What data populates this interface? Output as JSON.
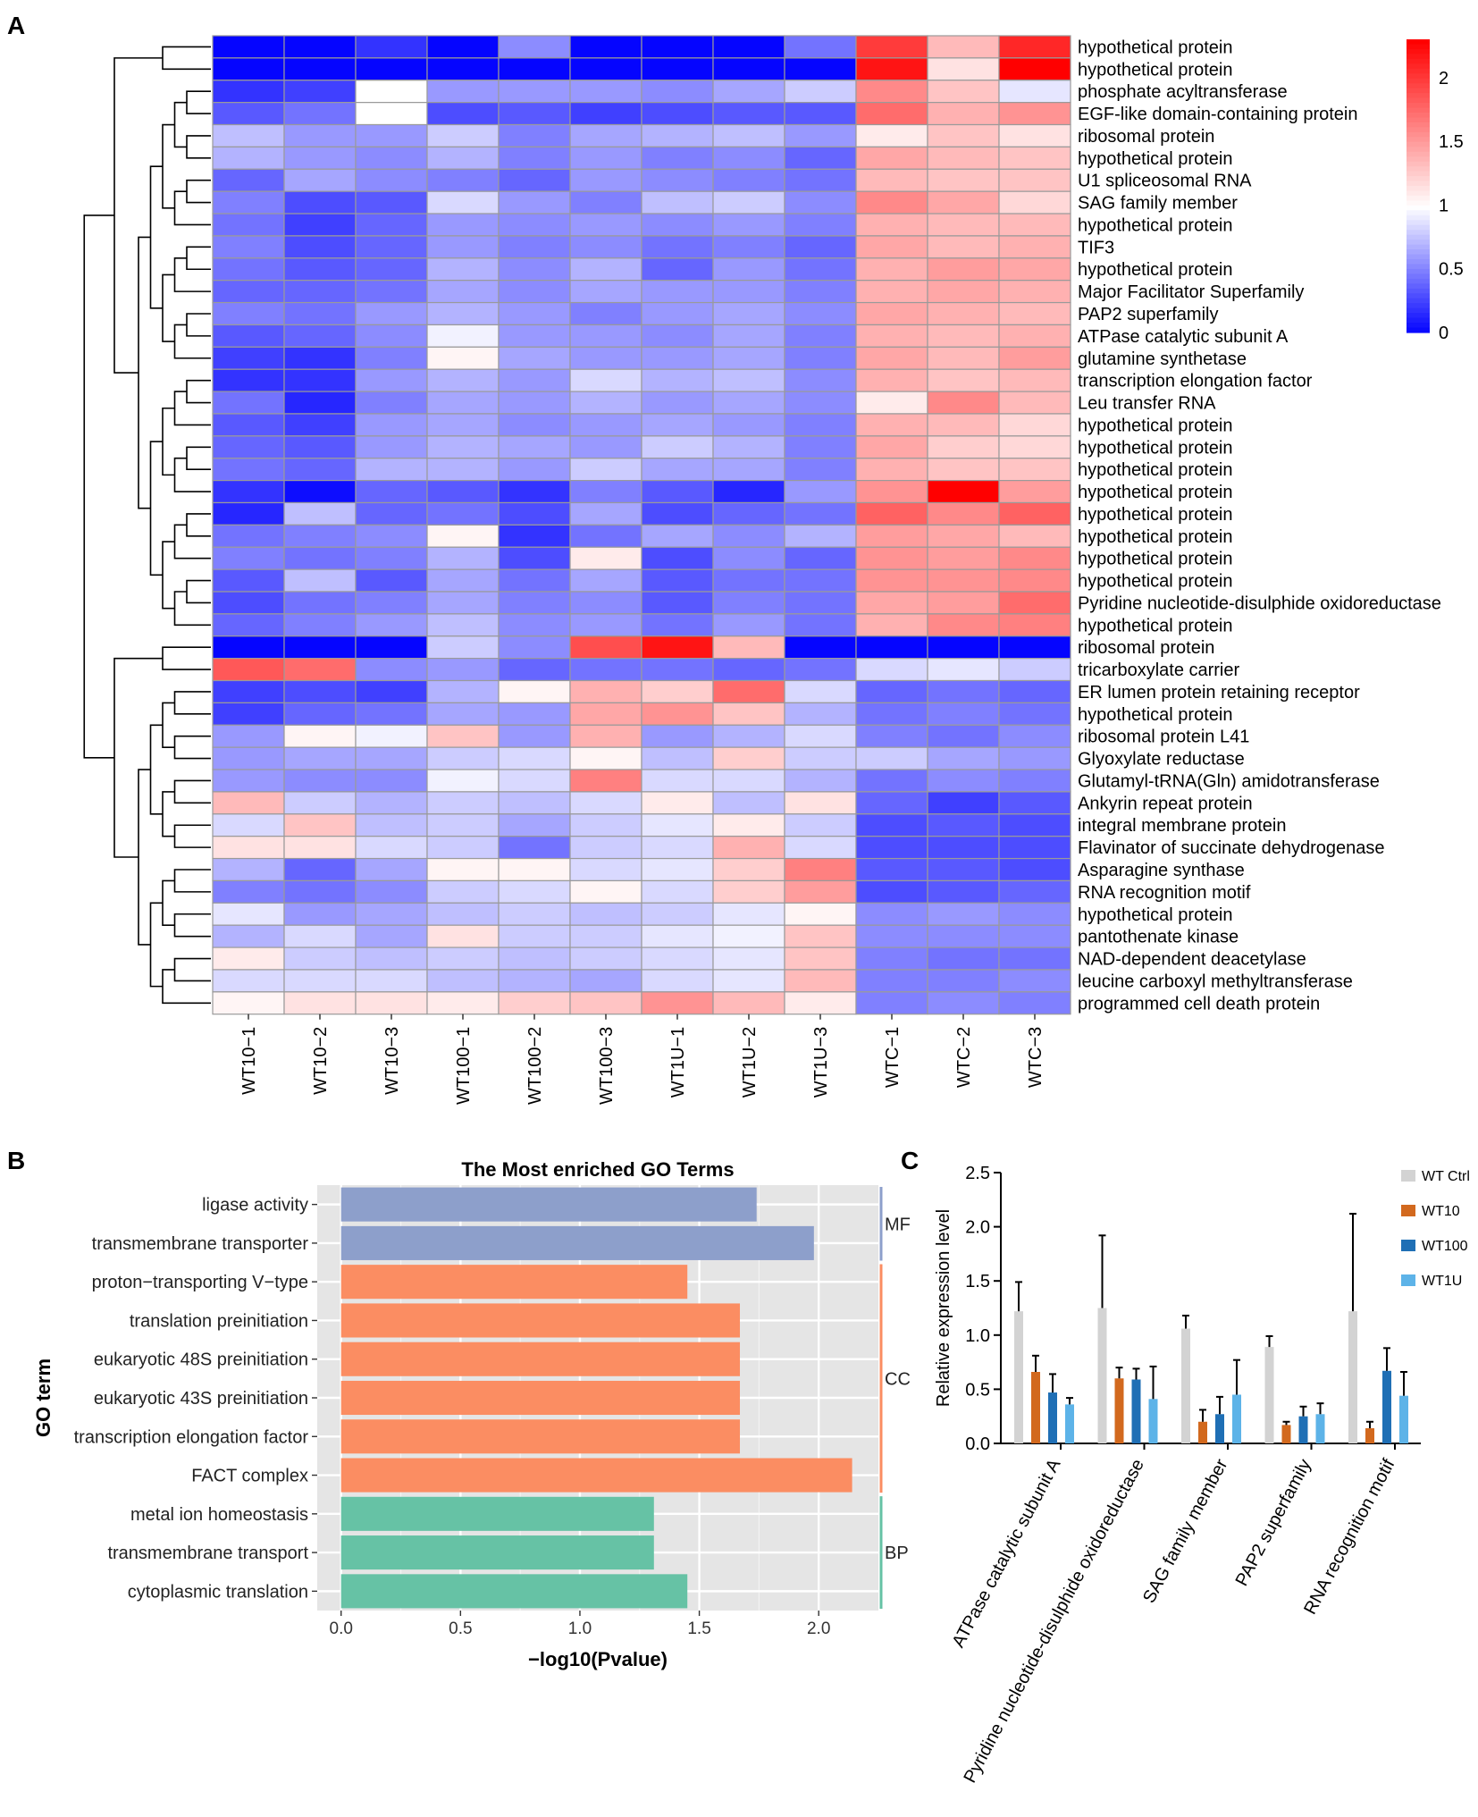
{
  "panels": {
    "a": "A",
    "b": "B",
    "c": "C"
  },
  "colors": {
    "heat_low": "#0000ff",
    "heat_mid": "#ffffff",
    "heat_high": "#ff0000",
    "heat_grid": "#9a9a9a",
    "mf": "#8d9fcb",
    "cc": "#fb8d62",
    "bp": "#66c2a5",
    "panel_bg": "#e5e5e5",
    "wt_ctrl": "#d3d3d3",
    "wt10": "#d2691e",
    "wt100": "#1f6fb5",
    "wt1u": "#5db3e8"
  },
  "chart_data": [
    {
      "type": "heatmap",
      "columns": [
        "WT10−1",
        "WT10−2",
        "WT10−3",
        "WT100−1",
        "WT100−2",
        "WT100−3",
        "WT1U−1",
        "WT1U−2",
        "WT1U−3",
        "WTC−1",
        "WTC−2",
        "WTC−3"
      ],
      "rows": [
        "hypothetical protein",
        "hypothetical protein",
        "phosphate acyltransferase",
        "EGF-like domain-containing protein",
        "ribosomal protein",
        "hypothetical protein",
        "U1 spliceosomal RNA",
        "SAG family member",
        "hypothetical protein",
        "TIF3",
        "hypothetical protein",
        "Major Facilitator Superfamily",
        "PAP2 superfamily",
        "ATPase catalytic subunit A",
        "glutamine synthetase",
        "transcription elongation factor",
        "Leu transfer RNA",
        "hypothetical protein",
        "hypothetical protein",
        "hypothetical protein",
        "hypothetical protein",
        "hypothetical protein",
        "hypothetical protein",
        "hypothetical protein",
        "hypothetical protein",
        "Pyridine nucleotide-disulphide oxidoreductase",
        "hypothetical protein",
        "ribosomal protein",
        "tricarboxylate carrier",
        "ER lumen protein retaining receptor",
        "hypothetical protein",
        "ribosomal protein L41",
        "Glyoxylate reductase",
        "Glutamyl-tRNA(Gln) amidotransferase",
        "Ankyrin repeat protein",
        "integral membrane protein",
        "Flavinator of succinate dehydrogenase",
        "Asparagine synthase",
        "RNA recognition motif",
        "hypothetical protein",
        "pantothenate kinase",
        "NAD-dependent deacetylase",
        "leucine carboxyl methyltransferase",
        "programmed cell death protein"
      ],
      "values": [
        [
          0.02,
          0.02,
          0.2,
          0.02,
          0.55,
          0.02,
          0.02,
          0.02,
          0.45,
          2.0,
          1.35,
          2.1
        ],
        [
          0.02,
          0.02,
          0.02,
          0.02,
          0.02,
          0.02,
          0.02,
          0.02,
          0.02,
          2.2,
          1.15,
          2.3
        ],
        [
          0.2,
          0.25,
          1.0,
          0.6,
          0.6,
          0.6,
          0.55,
          0.65,
          0.8,
          1.6,
          1.3,
          0.9
        ],
        [
          0.35,
          0.45,
          1.0,
          0.3,
          0.35,
          0.25,
          0.3,
          0.35,
          0.35,
          1.75,
          1.4,
          1.55
        ],
        [
          0.75,
          0.6,
          0.6,
          0.8,
          0.5,
          0.65,
          0.7,
          0.75,
          0.6,
          1.1,
          1.3,
          1.15
        ],
        [
          0.7,
          0.6,
          0.55,
          0.7,
          0.5,
          0.6,
          0.5,
          0.55,
          0.4,
          1.45,
          1.35,
          1.3
        ],
        [
          0.4,
          0.65,
          0.55,
          0.5,
          0.4,
          0.6,
          0.55,
          0.5,
          0.45,
          1.35,
          1.3,
          1.3
        ],
        [
          0.5,
          0.3,
          0.35,
          0.85,
          0.6,
          0.5,
          0.75,
          0.8,
          0.55,
          1.6,
          1.45,
          1.2
        ],
        [
          0.45,
          0.25,
          0.4,
          0.6,
          0.55,
          0.6,
          0.55,
          0.6,
          0.5,
          1.4,
          1.35,
          1.35
        ],
        [
          0.5,
          0.3,
          0.4,
          0.6,
          0.5,
          0.55,
          0.45,
          0.5,
          0.4,
          1.45,
          1.35,
          1.4
        ],
        [
          0.45,
          0.35,
          0.4,
          0.7,
          0.55,
          0.7,
          0.4,
          0.6,
          0.45,
          1.4,
          1.5,
          1.45
        ],
        [
          0.4,
          0.4,
          0.45,
          0.65,
          0.55,
          0.65,
          0.6,
          0.6,
          0.5,
          1.4,
          1.45,
          1.4
        ],
        [
          0.5,
          0.45,
          0.6,
          0.7,
          0.6,
          0.5,
          0.6,
          0.65,
          0.55,
          1.45,
          1.4,
          1.35
        ],
        [
          0.35,
          0.4,
          0.55,
          0.95,
          0.6,
          0.6,
          0.55,
          0.65,
          0.5,
          1.4,
          1.35,
          1.4
        ],
        [
          0.25,
          0.2,
          0.5,
          1.05,
          0.65,
          0.6,
          0.6,
          0.65,
          0.5,
          1.45,
          1.35,
          1.5
        ],
        [
          0.2,
          0.2,
          0.6,
          0.7,
          0.6,
          0.85,
          0.7,
          0.75,
          0.55,
          1.4,
          1.3,
          1.35
        ],
        [
          0.45,
          0.15,
          0.5,
          0.65,
          0.6,
          0.7,
          0.6,
          0.65,
          0.55,
          1.1,
          1.6,
          1.35
        ],
        [
          0.35,
          0.25,
          0.6,
          0.65,
          0.55,
          0.6,
          0.65,
          0.6,
          0.5,
          1.4,
          1.35,
          1.2
        ],
        [
          0.4,
          0.35,
          0.6,
          0.7,
          0.65,
          0.6,
          0.8,
          0.7,
          0.5,
          1.45,
          1.25,
          1.2
        ],
        [
          0.45,
          0.4,
          0.7,
          0.7,
          0.6,
          0.8,
          0.65,
          0.65,
          0.5,
          1.4,
          1.3,
          1.3
        ],
        [
          0.2,
          0.05,
          0.4,
          0.35,
          0.2,
          0.5,
          0.35,
          0.15,
          0.6,
          1.55,
          2.3,
          1.5
        ],
        [
          0.15,
          0.75,
          0.4,
          0.45,
          0.3,
          0.65,
          0.3,
          0.4,
          0.45,
          1.8,
          1.6,
          1.8
        ],
        [
          0.45,
          0.5,
          0.55,
          1.05,
          0.2,
          0.45,
          0.65,
          0.55,
          0.7,
          1.5,
          1.45,
          1.35
        ],
        [
          0.5,
          0.45,
          0.5,
          0.7,
          0.3,
          1.1,
          0.3,
          0.55,
          0.4,
          1.55,
          1.5,
          1.6
        ],
        [
          0.35,
          0.75,
          0.35,
          0.65,
          0.45,
          0.65,
          0.35,
          0.45,
          0.45,
          1.55,
          1.55,
          1.6
        ],
        [
          0.3,
          0.45,
          0.5,
          0.65,
          0.5,
          0.55,
          0.35,
          0.5,
          0.45,
          1.45,
          1.5,
          1.75
        ],
        [
          0.4,
          0.5,
          0.6,
          0.75,
          0.55,
          0.6,
          0.45,
          0.6,
          0.45,
          1.4,
          1.6,
          1.65
        ],
        [
          0.02,
          0.02,
          0.02,
          0.8,
          0.55,
          1.9,
          2.2,
          1.35,
          0.02,
          0.02,
          0.02,
          0.02
        ],
        [
          1.85,
          1.75,
          0.55,
          0.6,
          0.4,
          0.45,
          0.45,
          0.4,
          0.45,
          0.85,
          0.9,
          0.8
        ],
        [
          0.25,
          0.3,
          0.25,
          0.7,
          1.05,
          1.4,
          1.25,
          1.75,
          0.85,
          0.4,
          0.45,
          0.4
        ],
        [
          0.25,
          0.4,
          0.45,
          0.65,
          0.6,
          1.45,
          1.55,
          1.3,
          0.7,
          0.45,
          0.5,
          0.45
        ],
        [
          0.6,
          1.05,
          0.95,
          1.3,
          0.6,
          1.4,
          0.6,
          0.7,
          0.85,
          0.5,
          0.45,
          0.55
        ],
        [
          0.6,
          0.65,
          0.65,
          0.8,
          0.85,
          1.05,
          0.75,
          1.25,
          0.8,
          0.8,
          0.65,
          0.6
        ],
        [
          0.6,
          0.55,
          0.55,
          0.95,
          0.85,
          1.65,
          0.85,
          0.85,
          0.7,
          0.45,
          0.55,
          0.5
        ],
        [
          1.35,
          0.8,
          0.7,
          0.8,
          0.75,
          0.85,
          1.1,
          0.75,
          1.15,
          0.4,
          0.25,
          0.35
        ],
        [
          0.85,
          1.3,
          0.75,
          0.8,
          0.65,
          0.8,
          0.9,
          1.1,
          0.8,
          0.3,
          0.35,
          0.3
        ],
        [
          1.15,
          1.15,
          0.85,
          0.8,
          0.45,
          0.8,
          0.85,
          1.4,
          0.85,
          0.3,
          0.3,
          0.3
        ],
        [
          0.7,
          0.4,
          0.65,
          1.05,
          1.05,
          0.85,
          0.9,
          1.25,
          1.65,
          0.35,
          0.35,
          0.3
        ],
        [
          0.5,
          0.45,
          0.55,
          0.8,
          0.85,
          1.05,
          0.85,
          1.25,
          1.5,
          0.3,
          0.35,
          0.4
        ],
        [
          0.9,
          0.6,
          0.65,
          0.75,
          0.8,
          0.75,
          0.8,
          0.9,
          1.05,
          0.55,
          0.6,
          0.55
        ],
        [
          0.7,
          0.85,
          0.65,
          1.15,
          0.8,
          0.8,
          0.9,
          0.95,
          1.3,
          0.55,
          0.55,
          0.55
        ],
        [
          1.1,
          0.8,
          0.75,
          0.8,
          0.75,
          0.8,
          0.85,
          0.9,
          1.3,
          0.5,
          0.45,
          0.45
        ],
        [
          0.85,
          0.85,
          0.85,
          0.75,
          0.7,
          0.65,
          0.85,
          0.9,
          1.35,
          0.5,
          0.5,
          0.55
        ],
        [
          1.05,
          1.15,
          1.15,
          1.1,
          1.25,
          1.3,
          1.55,
          1.35,
          1.1,
          0.5,
          0.55,
          0.5
        ]
      ],
      "scale": {
        "min": 0,
        "mid": 1,
        "max": 2.3,
        "ticks": [
          0,
          0.5,
          1,
          1.5,
          2
        ],
        "tick_labels": [
          "0",
          "0.5",
          "1",
          "1.5",
          "2"
        ]
      }
    },
    {
      "type": "bar",
      "orientation": "horizontal",
      "title": "The Most enriched GO Terms",
      "xlabel": "−log10(Pvalue)",
      "ylabel": "GO term",
      "xlim": [
        -0.1,
        2.25
      ],
      "ticks": [
        0,
        0.5,
        1,
        1.5,
        2
      ],
      "tick_labels": [
        "0.0",
        "0.5",
        "1.0",
        "1.5",
        "2.0"
      ],
      "categories": [
        "ligase activity",
        "transmembrane transporter",
        "proton−transporting V−type",
        "translation preinitiation",
        "eukaryotic 48S preinitiation",
        "eukaryotic 43S preinitiation",
        "transcription elongation factor",
        "FACT complex",
        "metal ion homeostasis",
        "transmembrane transport",
        "cytoplasmic translation"
      ],
      "values": [
        1.74,
        1.98,
        1.45,
        1.67,
        1.67,
        1.67,
        1.67,
        2.14,
        1.31,
        1.31,
        1.45
      ],
      "groups": [
        {
          "label": "MF",
          "members": [
            0,
            1
          ],
          "color_key": "mf"
        },
        {
          "label": "CC",
          "members": [
            2,
            3,
            4,
            5,
            6,
            7
          ],
          "color_key": "cc"
        },
        {
          "label": "BP",
          "members": [
            8,
            9,
            10
          ],
          "color_key": "bp"
        }
      ]
    },
    {
      "type": "bar",
      "ylabel": "Relative expression level",
      "ylim": [
        0,
        2.5
      ],
      "yticks": [
        0,
        0.5,
        1,
        1.5,
        2,
        2.5
      ],
      "ytick_labels": [
        "0.0",
        "0.5",
        "1.0",
        "1.5",
        "2.0",
        "2.5"
      ],
      "categories": [
        "ATPase catalytic subunit A",
        "Pyridine nucleotide-disulphide oxidoreductase",
        "SAG family member",
        "PAP2 superfamily",
        "RNA recognition motif"
      ],
      "series": [
        {
          "name": "WT Ctrl",
          "color_key": "wt_ctrl",
          "values": [
            1.22,
            1.25,
            1.06,
            0.89,
            1.22
          ],
          "errors": [
            0.27,
            0.67,
            0.12,
            0.1,
            0.9
          ]
        },
        {
          "name": "WT10",
          "color_key": "wt10",
          "values": [
            0.66,
            0.6,
            0.2,
            0.17,
            0.14
          ],
          "errors": [
            0.15,
            0.1,
            0.11,
            0.03,
            0.06
          ]
        },
        {
          "name": "WT100",
          "color_key": "wt100",
          "values": [
            0.47,
            0.59,
            0.27,
            0.25,
            0.67
          ],
          "errors": [
            0.17,
            0.1,
            0.16,
            0.09,
            0.21
          ]
        },
        {
          "name": "WT1U",
          "color_key": "wt1u",
          "values": [
            0.36,
            0.41,
            0.45,
            0.27,
            0.44
          ],
          "errors": [
            0.06,
            0.3,
            0.32,
            0.1,
            0.22
          ]
        }
      ]
    }
  ]
}
